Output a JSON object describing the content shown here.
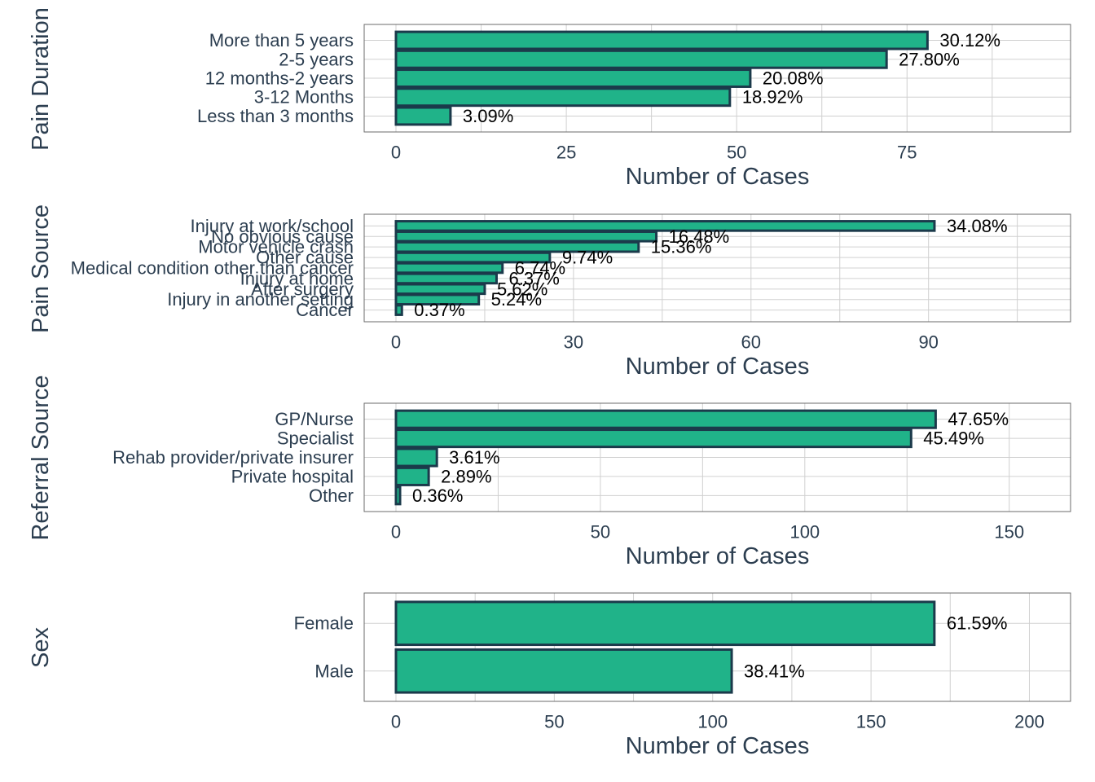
{
  "colors": {
    "bar_fill": "#20b389",
    "bar_stroke": "#1b3a4b",
    "grid": "#d0d0d0",
    "border": "#6b6b6b",
    "text": "#2c3e50",
    "label": "#000000"
  },
  "chart_data": [
    {
      "type": "bar",
      "orientation": "horizontal",
      "facet_title": "Pain Duration",
      "xlabel": "Number of Cases",
      "xlim": [
        0,
        99
      ],
      "xticks": [
        0,
        25,
        50,
        75
      ],
      "categories": [
        "More than 5 years",
        "2-5 years",
        "12 months-2 years",
        "3-12 Months",
        "Less than 3 months"
      ],
      "values": [
        78,
        72,
        52,
        49,
        8
      ],
      "data_labels": [
        "30.12%",
        "27.80%",
        "20.08%",
        "18.92%",
        "3.09%"
      ],
      "grid": true
    },
    {
      "type": "bar",
      "orientation": "horizontal",
      "facet_title": "Pain Source",
      "xlabel": "Number of Cases",
      "xlim": [
        0,
        114
      ],
      "xticks": [
        0,
        30,
        60,
        90
      ],
      "categories": [
        "Injury at work/school",
        "No obvious cause",
        "Motor vehicle crash",
        "Other cause",
        "Medical condition other than cancer",
        "Injury at home",
        "After surgery",
        "Injury in another setting",
        "Cancer"
      ],
      "values": [
        91,
        44,
        41,
        26,
        18,
        17,
        15,
        14,
        1
      ],
      "data_labels": [
        "34.08%",
        "16.48%",
        "15.36%",
        "9.74%",
        "6.74%",
        "6.37%",
        "5.62%",
        "5.24%",
        "0.37%"
      ],
      "grid": true
    },
    {
      "type": "bar",
      "orientation": "horizontal",
      "facet_title": "Referral Source",
      "xlabel": "Number of Cases",
      "xlim": [
        0,
        165
      ],
      "xticks": [
        0,
        50,
        100,
        150
      ],
      "categories": [
        "GP/Nurse",
        "Specialist",
        "Rehab provider/private insurer",
        "Private hospital",
        "Other"
      ],
      "values": [
        132,
        126,
        10,
        8,
        1
      ],
      "data_labels": [
        "47.65%",
        "45.49%",
        "3.61%",
        "2.89%",
        "0.36%"
      ],
      "grid": true
    },
    {
      "type": "bar",
      "orientation": "horizontal",
      "facet_title": "Sex",
      "xlabel": "Number of Cases",
      "xlim": [
        0,
        213
      ],
      "xticks": [
        0,
        50,
        100,
        150,
        200
      ],
      "categories": [
        "Female",
        "Male"
      ],
      "values": [
        170,
        106
      ],
      "data_labels": [
        "61.59%",
        "38.41%"
      ],
      "grid": true
    }
  ]
}
